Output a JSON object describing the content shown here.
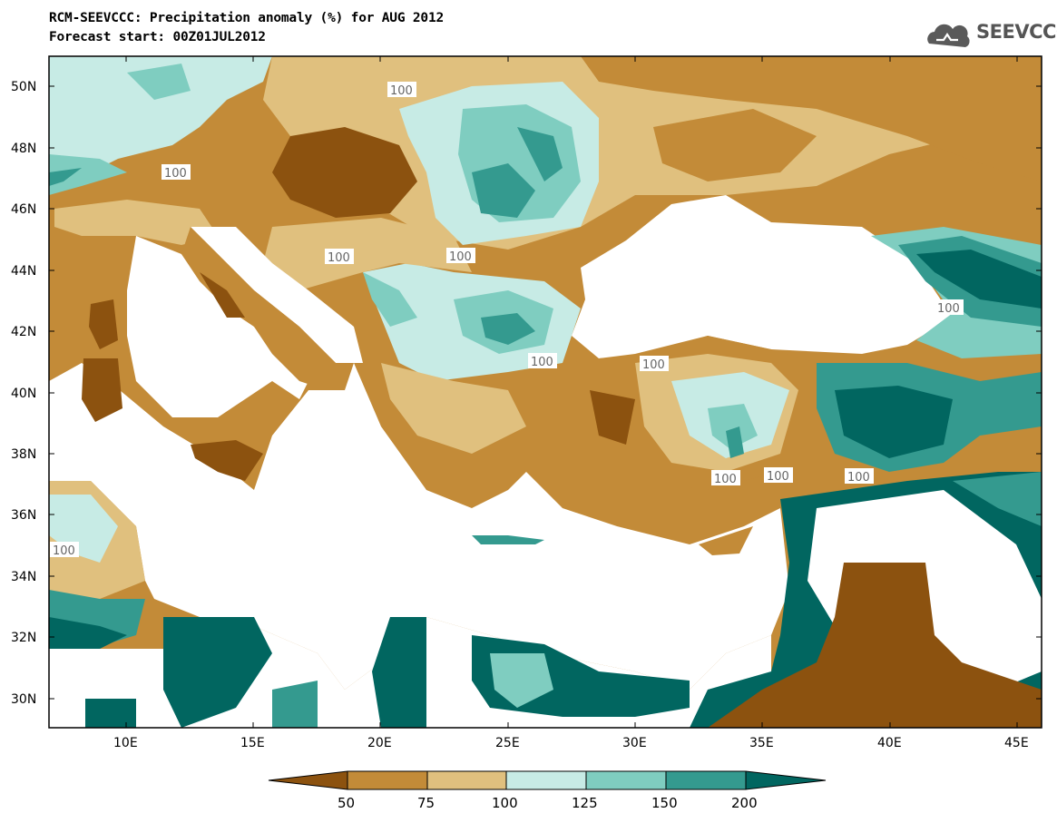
{
  "header": {
    "title": "RCM-SEEVCCC: Precipitation anomaly (%) for AUG 2012",
    "subtitle": "Forecast start: 00Z01JUL2012",
    "logo_text": "SEEVCCC"
  },
  "map": {
    "lat_ticks": [
      "50N",
      "48N",
      "46N",
      "44N",
      "42N",
      "40N",
      "38N",
      "36N",
      "34N",
      "32N",
      "30N"
    ],
    "lon_ticks": [
      "10E",
      "15E",
      "20E",
      "25E",
      "30E",
      "35E",
      "40E",
      "45E"
    ],
    "contour_labels": [
      "100",
      "100",
      "100",
      "100",
      "100",
      "100",
      "100",
      "100",
      "100",
      "100",
      "100"
    ]
  },
  "colorbar": {
    "labels": [
      "50",
      "75",
      "100",
      "125",
      "150",
      "200"
    ],
    "colors": [
      "#8c520f",
      "#c38b38",
      "#e0c07e",
      "#c7ebe5",
      "#7fcdc0",
      "#349a8f",
      "#016660"
    ]
  }
}
